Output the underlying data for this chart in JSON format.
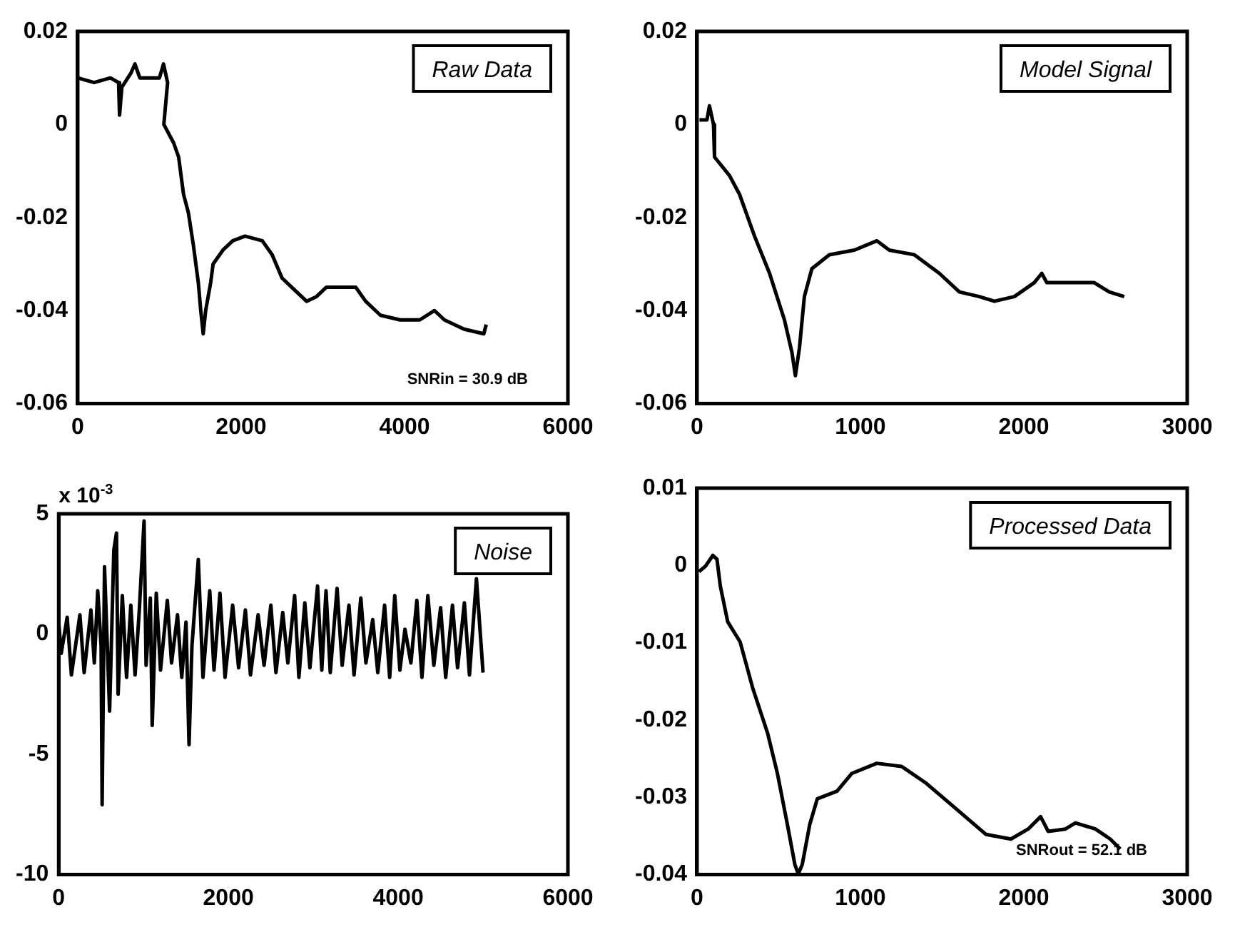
{
  "chart_data": [
    {
      "type": "line",
      "color": "#000000",
      "annotations": [
        "Raw Data",
        "SNRin = 30.9 dB"
      ],
      "xlim": [
        0,
        6000
      ],
      "xticks": [
        0,
        2000,
        4000,
        6000
      ],
      "ylim": [
        -0.06,
        0.02
      ],
      "yticks": [
        -0.06,
        -0.04,
        -0.02,
        0,
        0.02
      ],
      "x": [
        0,
        200,
        400,
        500,
        512,
        540,
        650,
        700,
        760,
        900,
        1000,
        1050,
        1100,
        1054,
        1175,
        1235,
        1295,
        1355,
        1416,
        1476,
        1506,
        1536,
        1566,
        1627,
        1657,
        1777,
        1898,
        2048,
        2259,
        2380,
        2500,
        2620,
        2801,
        2922,
        3042,
        3223,
        3404,
        3524,
        3705,
        3946,
        4187,
        4367,
        4488,
        4729,
        4970,
        5000
      ],
      "values": [
        0.01,
        0.009,
        0.01,
        0.009,
        0.002,
        0.008,
        0.011,
        0.013,
        0.01,
        0.01,
        0.01,
        0.013,
        0.009,
        0.0,
        -0.004,
        -0.007,
        -0.015,
        -0.019,
        -0.026,
        -0.034,
        -0.04,
        -0.045,
        -0.04,
        -0.034,
        -0.03,
        -0.027,
        -0.025,
        -0.024,
        -0.025,
        -0.028,
        -0.033,
        -0.035,
        -0.038,
        -0.037,
        -0.035,
        -0.035,
        -0.035,
        -0.038,
        -0.041,
        -0.042,
        -0.042,
        -0.04,
        -0.042,
        -0.044,
        -0.045,
        -0.043
      ]
    },
    {
      "type": "line",
      "color": "#000000",
      "annotations": [
        "Model Signal"
      ],
      "xlim": [
        0,
        3000
      ],
      "xticks": [
        0,
        1000,
        2000,
        3000
      ],
      "ylim": [
        -0.06,
        0.02
      ],
      "yticks": [
        -0.06,
        -0.04,
        -0.02,
        0,
        0.02
      ],
      "x": [
        15,
        61,
        76,
        101,
        107,
        199,
        260,
        352,
        444,
        535,
        581,
        602,
        627,
        657,
        703,
        810,
        963,
        1101,
        1177,
        1330,
        1483,
        1606,
        1728,
        1820,
        1942,
        2064,
        2110,
        2141,
        2248,
        2431,
        2523,
        2615
      ],
      "values": [
        0.001,
        0.001,
        0.004,
        0.0,
        -0.007,
        -0.011,
        -0.015,
        -0.024,
        -0.032,
        -0.042,
        -0.049,
        -0.054,
        -0.048,
        -0.037,
        -0.031,
        -0.028,
        -0.027,
        -0.025,
        -0.027,
        -0.028,
        -0.032,
        -0.036,
        -0.037,
        -0.038,
        -0.037,
        -0.034,
        -0.032,
        -0.034,
        -0.034,
        -0.034,
        -0.036,
        -0.037
      ]
    },
    {
      "type": "line",
      "color": "#000000",
      "annotations": [
        "Noise"
      ],
      "ylabel": "x 10$^{-3}$",
      "xlim": [
        0,
        6000
      ],
      "xticks": [
        0,
        2000,
        4000,
        6000
      ],
      "ylim": [
        -10,
        5
      ],
      "yticks": [
        -10,
        -5,
        0,
        5
      ],
      "x": [
        0,
        30,
        100,
        150,
        250,
        300,
        380,
        420,
        460,
        500,
        512,
        540,
        600,
        650,
        681,
        700,
        750,
        800,
        850,
        900,
        950,
        1006,
        1030,
        1080,
        1102,
        1150,
        1200,
        1280,
        1330,
        1400,
        1450,
        1500,
        1536,
        1570,
        1645,
        1700,
        1780,
        1830,
        1900,
        1960,
        2050,
        2120,
        2200,
        2260,
        2350,
        2420,
        2500,
        2560,
        2640,
        2700,
        2780,
        2830,
        2900,
        2960,
        3050,
        3100,
        3150,
        3200,
        3280,
        3340,
        3420,
        3480,
        3560,
        3620,
        3700,
        3760,
        3840,
        3900,
        3960,
        4020,
        4080,
        4150,
        4220,
        4280,
        4350,
        4420,
        4500,
        4560,
        4640,
        4700,
        4780,
        4840,
        4922,
        5000
      ],
      "values": [
        0.5,
        -0.8,
        0.7,
        -1.7,
        0.8,
        -1.6,
        1.0,
        -1.2,
        1.8,
        -0.5,
        -7.1,
        2.8,
        -3.2,
        3.5,
        4.2,
        -2.5,
        1.6,
        -1.8,
        1.2,
        -1.7,
        1.0,
        4.7,
        -1.3,
        1.5,
        -3.8,
        1.7,
        -1.5,
        1.4,
        -1.2,
        0.8,
        -1.8,
        0.5,
        -4.6,
        -0.5,
        3.1,
        -1.8,
        1.8,
        -1.5,
        1.7,
        -1.8,
        1.2,
        -1.4,
        1.0,
        -1.7,
        0.8,
        -1.3,
        1.2,
        -1.6,
        0.9,
        -1.2,
        1.6,
        -1.8,
        1.3,
        -1.4,
        2.0,
        -1.5,
        1.8,
        -1.6,
        1.9,
        -1.3,
        1.2,
        -1.7,
        1.5,
        -1.2,
        0.6,
        -1.6,
        1.2,
        -1.8,
        1.6,
        -1.5,
        0.2,
        -1.2,
        1.4,
        -1.8,
        1.6,
        -1.3,
        1.1,
        -1.8,
        1.2,
        -1.4,
        1.3,
        -1.7,
        2.3,
        -1.6
      ]
    },
    {
      "type": "line",
      "color": "#000000",
      "annotations": [
        "Processed Data",
        "SNRout = 52.1 dB"
      ],
      "xlim": [
        0,
        3000
      ],
      "xticks": [
        0,
        1000,
        2000,
        3000
      ],
      "ylim": [
        -0.04,
        0.01
      ],
      "yticks": [
        -0.04,
        -0.03,
        -0.02,
        -0.01,
        0,
        0.01
      ],
      "x": [
        12,
        52,
        97,
        122,
        143,
        188,
        264,
        340,
        432,
        492,
        553,
        599,
        620,
        644,
        690,
        736,
        857,
        948,
        1100,
        1252,
        1404,
        1587,
        1769,
        1921,
        2027,
        2103,
        2149,
        2255,
        2316,
        2438,
        2529,
        2590
      ],
      "values": [
        -0.0008,
        -0.0001,
        0.0013,
        0.0008,
        -0.0027,
        -0.0073,
        -0.0099,
        -0.0158,
        -0.0217,
        -0.0269,
        -0.0335,
        -0.0387,
        -0.0399,
        -0.0387,
        -0.0335,
        -0.0302,
        -0.0292,
        -0.0269,
        -0.0256,
        -0.026,
        -0.0282,
        -0.0315,
        -0.0348,
        -0.0354,
        -0.0341,
        -0.0325,
        -0.0344,
        -0.0341,
        -0.0333,
        -0.0341,
        -0.0354,
        -0.0367
      ]
    }
  ]
}
